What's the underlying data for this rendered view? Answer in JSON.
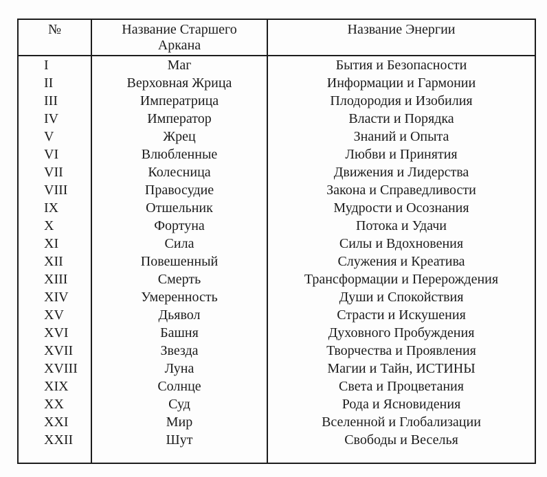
{
  "table": {
    "headers": [
      "№",
      "Название Старшего Аркана",
      "Название Энергии"
    ],
    "rows": [
      {
        "num": "I",
        "arcana": "Маг",
        "energy": "Бытия и Безопасности"
      },
      {
        "num": "II",
        "arcana": "Верховная Жрица",
        "energy": "Информации и Гармонии"
      },
      {
        "num": "III",
        "arcana": "Императрица",
        "energy": "Плодородия и Изобилия"
      },
      {
        "num": "IV",
        "arcana": "Император",
        "energy": "Власти и Порядка"
      },
      {
        "num": "V",
        "arcana": "Жрец",
        "energy": "Знаний и Опыта"
      },
      {
        "num": "VI",
        "arcana": "Влюбленные",
        "energy": "Любви и Принятия"
      },
      {
        "num": "VII",
        "arcana": "Колесница",
        "energy": "Движения и Лидерства"
      },
      {
        "num": "VIII",
        "arcana": "Правосудие",
        "energy": "Закона и Справедливости"
      },
      {
        "num": "IX",
        "arcana": "Отшельник",
        "energy": "Мудрости и Осознания"
      },
      {
        "num": "X",
        "arcana": "Фортуна",
        "energy": "Потока и Удачи"
      },
      {
        "num": "XI",
        "arcana": "Сила",
        "energy": "Силы и Вдохновения"
      },
      {
        "num": "XII",
        "arcana": "Повешенный",
        "energy": "Служения и Креатива"
      },
      {
        "num": "XIII",
        "arcana": "Смерть",
        "energy": "Трансформации и Перерождения"
      },
      {
        "num": "XIV",
        "arcana": "Умеренность",
        "energy": "Души и Спокойствия"
      },
      {
        "num": "XV",
        "arcana": "Дьявол",
        "energy": "Страсти и Искушения"
      },
      {
        "num": "XVI",
        "arcana": "Башня",
        "energy": "Духовного Пробуждения"
      },
      {
        "num": "XVII",
        "arcana": "Звезда",
        "energy": "Творчества и Проявления"
      },
      {
        "num": "XVIII",
        "arcana": "Луна",
        "energy": "Магии и Тайн, ИСТИНЫ"
      },
      {
        "num": "XIX",
        "arcana": "Солнце",
        "energy": "Света и Процветания"
      },
      {
        "num": "XX",
        "arcana": "Суд",
        "energy": "Рода и Ясновидения"
      },
      {
        "num": "XXI",
        "arcana": "Мир",
        "energy": "Вселенной и Глобализации"
      },
      {
        "num": "XXII",
        "arcana": "Шут",
        "energy": "Свободы и Веселья"
      }
    ]
  },
  "colors": {
    "background": "#fdfdfd",
    "text": "#1c1c1c",
    "border": "#1c1c1c"
  }
}
